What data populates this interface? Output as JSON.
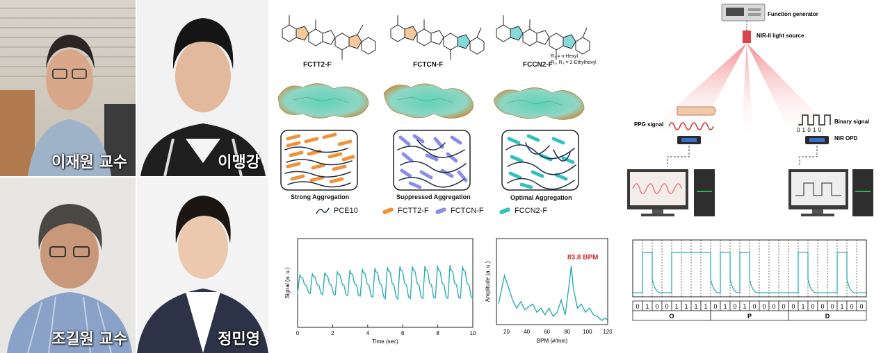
{
  "photos": {
    "p1_caption": "이재원 교수",
    "p2_caption": "이맹강",
    "p3_caption": "조길원 교수",
    "p4_caption": "정민영"
  },
  "molecules": {
    "m1": "FCTT2-F",
    "m2": "FCTCN-F",
    "m3": "FCCN2-F",
    "r1": "R₁ = n-Hexyl",
    "r2": "R₂, R₃ = 2-Ethylhexyl"
  },
  "aggregation": {
    "a1": "Strong Aggregation",
    "a2": "Suppressed Aggregation",
    "a3": "Optimal Aggregation"
  },
  "legend": {
    "l1": "PCE10",
    "l2": "FCTT2-F",
    "l3": "FCTCN-F",
    "l4": "FCCN2-F",
    "colors": {
      "PCE10": "#1f2d4a",
      "FCTT2-F": "#f0923a",
      "FCTCN-F": "#8c8ee6",
      "FCCN2-F": "#33c0c0"
    }
  },
  "signal_chart": {
    "ylabel": "Signal (a. u.)",
    "xlabel": "Time (sec)",
    "xticks": [
      "0",
      "2",
      "4",
      "6",
      "8",
      "10"
    ]
  },
  "fft_chart": {
    "ylabel": "Amplitude (a. u.)",
    "xlabel": "BPM (#/min)",
    "xticks": [
      "20",
      "40",
      "60",
      "80",
      "100",
      "120"
    ],
    "peak_label": "83.8 BPM"
  },
  "setup": {
    "function_generator": "Function generator",
    "light_source": "NIR-II light source",
    "ppg_signal": "PPG signal",
    "binary_signal": "Binary signal",
    "binary_bits_small": "0 1 0 1 0",
    "nir_opd": "NIR OPD"
  },
  "bits": {
    "row": [
      "0",
      "1",
      "0",
      "0",
      "1",
      "1",
      "1",
      "1",
      "0",
      "1",
      "0",
      "1",
      "0",
      "0",
      "0",
      "0",
      "0",
      "1",
      "0",
      "0",
      "0",
      "1",
      "0",
      "0"
    ],
    "letters": [
      "O",
      "P",
      "D"
    ]
  },
  "chart_data": [
    {
      "type": "line",
      "title": "",
      "xlabel": "Time (sec)",
      "ylabel": "Signal (a. u.)",
      "xlim": [
        0,
        10
      ],
      "series": [
        {
          "note_shape": "periodic PPG pulses",
          "beats_per_10s": 14
        }
      ]
    },
    {
      "type": "line",
      "title": "",
      "xlabel": "BPM (#/min)",
      "ylabel": "Amplitude (a. u.)",
      "xlim": [
        10,
        120
      ],
      "x": [
        12,
        18,
        22,
        26,
        30,
        34,
        38,
        42,
        46,
        50,
        54,
        58,
        62,
        66,
        70,
        74,
        78,
        82,
        84,
        86,
        90,
        94,
        98,
        102,
        106,
        110,
        114,
        118,
        120
      ],
      "y": [
        0.25,
        0.6,
        0.45,
        0.3,
        0.2,
        0.28,
        0.18,
        0.22,
        0.25,
        0.15,
        0.2,
        0.12,
        0.2,
        0.1,
        0.15,
        0.3,
        0.12,
        0.5,
        0.72,
        0.45,
        0.2,
        0.25,
        0.15,
        0.2,
        0.12,
        0.1,
        0.05,
        0.08,
        0.05
      ],
      "annotations": [
        "83.8 BPM"
      ]
    }
  ]
}
